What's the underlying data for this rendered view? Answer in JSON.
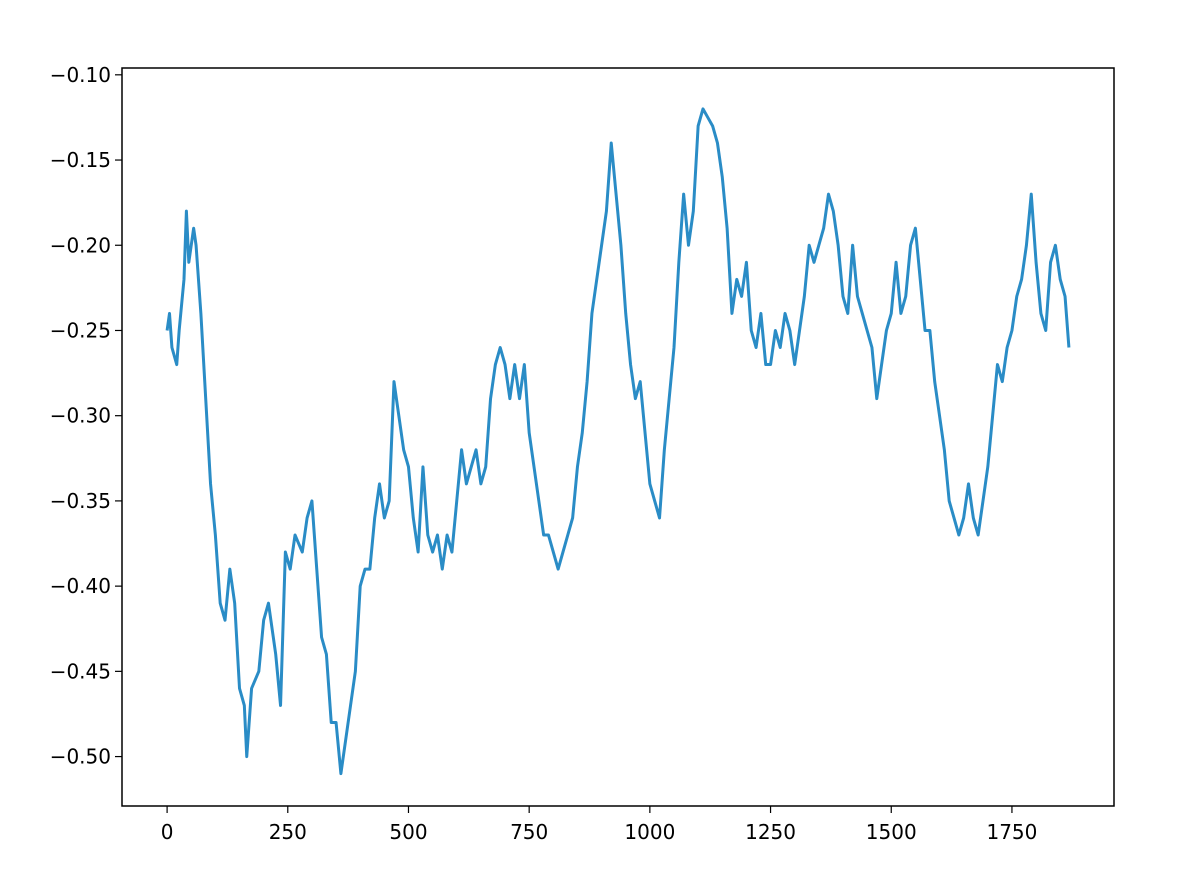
{
  "chart_data": {
    "type": "line",
    "x": [
      0,
      5,
      10,
      20,
      25,
      35,
      40,
      45,
      55,
      60,
      70,
      80,
      90,
      100,
      110,
      120,
      130,
      140,
      150,
      160,
      165,
      175,
      190,
      200,
      210,
      225,
      235,
      245,
      255,
      265,
      280,
      290,
      300,
      310,
      320,
      330,
      340,
      350,
      360,
      370,
      380,
      390,
      400,
      410,
      420,
      430,
      440,
      450,
      460,
      470,
      480,
      490,
      500,
      510,
      520,
      530,
      540,
      550,
      560,
      570,
      580,
      590,
      600,
      610,
      620,
      630,
      640,
      650,
      660,
      670,
      680,
      690,
      700,
      710,
      720,
      730,
      740,
      750,
      760,
      770,
      780,
      790,
      800,
      810,
      820,
      830,
      840,
      850,
      860,
      870,
      880,
      890,
      900,
      910,
      920,
      930,
      940,
      950,
      960,
      970,
      980,
      990,
      1000,
      1010,
      1020,
      1030,
      1040,
      1050,
      1060,
      1070,
      1080,
      1090,
      1100,
      1110,
      1120,
      1130,
      1140,
      1150,
      1160,
      1170,
      1180,
      1190,
      1200,
      1210,
      1220,
      1230,
      1240,
      1250,
      1260,
      1270,
      1280,
      1290,
      1300,
      1310,
      1320,
      1330,
      1340,
      1350,
      1360,
      1370,
      1380,
      1390,
      1400,
      1410,
      1420,
      1430,
      1440,
      1450,
      1460,
      1470,
      1480,
      1490,
      1500,
      1510,
      1520,
      1530,
      1540,
      1550,
      1560,
      1570,
      1580,
      1590,
      1600,
      1610,
      1620,
      1630,
      1640,
      1650,
      1660,
      1670,
      1680,
      1690,
      1700,
      1710,
      1720,
      1730,
      1740,
      1750,
      1760,
      1770,
      1780,
      1790,
      1800,
      1810,
      1820,
      1830,
      1840,
      1850,
      1860,
      1868
    ],
    "series": [
      {
        "color": "#2a8cc6",
        "values": [
          -0.25,
          -0.24,
          -0.26,
          -0.27,
          -0.25,
          -0.22,
          -0.18,
          -0.21,
          -0.19,
          -0.2,
          -0.24,
          -0.29,
          -0.34,
          -0.37,
          -0.41,
          -0.42,
          -0.39,
          -0.41,
          -0.46,
          -0.47,
          -0.5,
          -0.46,
          -0.45,
          -0.42,
          -0.41,
          -0.44,
          -0.47,
          -0.38,
          -0.39,
          -0.37,
          -0.38,
          -0.36,
          -0.35,
          -0.39,
          -0.43,
          -0.44,
          -0.48,
          -0.48,
          -0.51,
          -0.49,
          -0.47,
          -0.45,
          -0.4,
          -0.39,
          -0.39,
          -0.36,
          -0.34,
          -0.36,
          -0.35,
          -0.28,
          -0.3,
          -0.32,
          -0.33,
          -0.36,
          -0.38,
          -0.33,
          -0.37,
          -0.38,
          -0.37,
          -0.39,
          -0.37,
          -0.38,
          -0.35,
          -0.32,
          -0.34,
          -0.33,
          -0.32,
          -0.34,
          -0.33,
          -0.29,
          -0.27,
          -0.26,
          -0.27,
          -0.29,
          -0.27,
          -0.29,
          -0.27,
          -0.31,
          -0.33,
          -0.35,
          -0.37,
          -0.37,
          -0.38,
          -0.39,
          -0.38,
          -0.37,
          -0.36,
          -0.33,
          -0.31,
          -0.28,
          -0.24,
          -0.22,
          -0.2,
          -0.18,
          -0.14,
          -0.17,
          -0.2,
          -0.24,
          -0.27,
          -0.29,
          -0.28,
          -0.31,
          -0.34,
          -0.35,
          -0.36,
          -0.32,
          -0.29,
          -0.26,
          -0.21,
          -0.17,
          -0.2,
          -0.18,
          -0.13,
          -0.12,
          -0.125,
          -0.13,
          -0.14,
          -0.16,
          -0.19,
          -0.24,
          -0.22,
          -0.23,
          -0.21,
          -0.25,
          -0.26,
          -0.24,
          -0.27,
          -0.27,
          -0.25,
          -0.26,
          -0.24,
          -0.25,
          -0.27,
          -0.25,
          -0.23,
          -0.2,
          -0.21,
          -0.2,
          -0.19,
          -0.17,
          -0.18,
          -0.2,
          -0.23,
          -0.24,
          -0.2,
          -0.23,
          -0.24,
          -0.25,
          -0.26,
          -0.29,
          -0.27,
          -0.25,
          -0.24,
          -0.21,
          -0.24,
          -0.23,
          -0.2,
          -0.19,
          -0.22,
          -0.25,
          -0.25,
          -0.28,
          -0.3,
          -0.32,
          -0.35,
          -0.36,
          -0.37,
          -0.36,
          -0.34,
          -0.36,
          -0.37,
          -0.35,
          -0.33,
          -0.3,
          -0.27,
          -0.28,
          -0.26,
          -0.25,
          -0.23,
          -0.22,
          -0.2,
          -0.17,
          -0.21,
          -0.24,
          -0.25,
          -0.21,
          -0.2,
          -0.22,
          -0.23,
          -0.26
        ]
      }
    ],
    "xlim": [
      -93.4,
      1961.4
    ],
    "ylim": [
      -0.529,
      -0.096
    ],
    "xticks": [
      0,
      250,
      500,
      750,
      1000,
      1250,
      1500,
      1750
    ],
    "yticks": [
      {
        "value": -0.1,
        "label": "−0.10"
      },
      {
        "value": -0.15,
        "label": "−0.15"
      },
      {
        "value": -0.2,
        "label": "−0.20"
      },
      {
        "value": -0.25,
        "label": "−0.25"
      },
      {
        "value": -0.3,
        "label": "−0.30"
      },
      {
        "value": -0.35,
        "label": "−0.35"
      },
      {
        "value": -0.4,
        "label": "−0.40"
      },
      {
        "value": -0.45,
        "label": "−0.45"
      },
      {
        "value": -0.5,
        "label": "−0.50"
      }
    ],
    "grid": false
  }
}
